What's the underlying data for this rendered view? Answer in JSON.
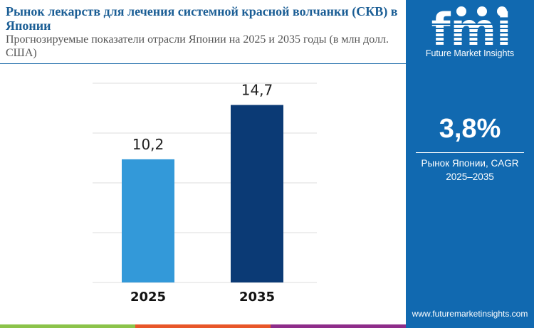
{
  "header": {
    "title": "Рынок лекарств для лечения системной красной волчанки (СКВ) в Японии",
    "subtitle": "Прогнозируемые показатели отрасли Японии на 2025 и 2035 годы (в млн долл. США)"
  },
  "chart_data": {
    "type": "bar",
    "categories": [
      "2025",
      "2035"
    ],
    "values": [
      10.2,
      14.7
    ],
    "value_labels": [
      "10,2",
      "14,7"
    ],
    "colors": [
      "#3399d9",
      "#0b3a75"
    ],
    "ylim": [
      0,
      16.5
    ],
    "grid": true
  },
  "sidebar": {
    "logo_text": "fmi",
    "brand": "Future Market Insights",
    "cagr_value": "3,8%",
    "cagr_label": "Рынок Японии, CAGR",
    "cagr_period": "2025–2035",
    "url": "www.futuremarketinsights.com"
  },
  "colors": {
    "brand": "#1169b0",
    "strip": [
      "#8bc34a",
      "#e8572a",
      "#8e2d8a"
    ]
  }
}
